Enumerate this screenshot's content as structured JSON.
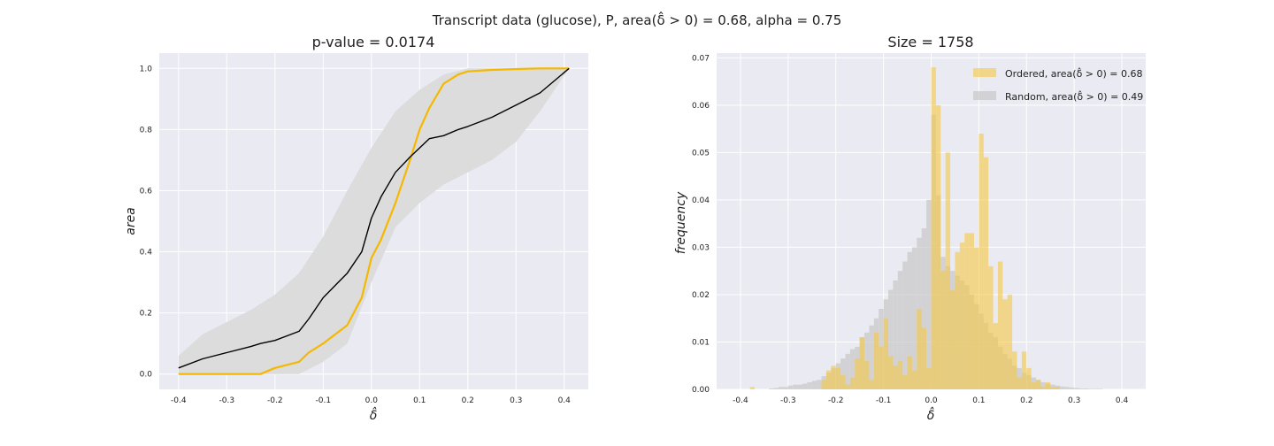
{
  "suptitle": "Transcript data (glucose), P, area(δ̂ > 0) = 0.68, alpha = 0.75",
  "chart_data": [
    {
      "type": "line",
      "title": "p-value = 0.0174",
      "xlabel": "δ̂",
      "ylabel": "area",
      "xlim": [
        -0.44,
        0.45
      ],
      "ylim": [
        -0.05,
        1.05
      ],
      "xticks": [
        "-0.4",
        "-0.3",
        "-0.2",
        "-0.1",
        "0.0",
        "0.1",
        "0.2",
        "0.3",
        "0.4"
      ],
      "yticks": [
        "0.0",
        "0.2",
        "0.4",
        "0.6",
        "0.8",
        "1.0"
      ],
      "grid": true,
      "colors": {
        "ordered": "#f5b800",
        "mean": "#000000",
        "band": "#dcdcdc",
        "background": "#eaeaf2"
      },
      "x": [
        -0.4,
        -0.35,
        -0.3,
        -0.25,
        -0.23,
        -0.2,
        -0.15,
        -0.13,
        -0.1,
        -0.05,
        -0.02,
        0.0,
        0.02,
        0.05,
        0.08,
        0.1,
        0.12,
        0.15,
        0.18,
        0.2,
        0.25,
        0.3,
        0.35,
        0.41
      ],
      "series": [
        {
          "values": [
            0.0,
            0.0,
            0.0,
            0.0,
            0.0,
            0.02,
            0.04,
            0.07,
            0.1,
            0.16,
            0.25,
            0.38,
            0.44,
            0.56,
            0.7,
            0.8,
            0.87,
            0.95,
            0.98,
            0.99,
            0.995,
            0.998,
            1.0,
            1.0
          ]
        },
        {
          "values": [
            0.02,
            0.05,
            0.07,
            0.09,
            0.1,
            0.11,
            0.14,
            0.18,
            0.25,
            0.33,
            0.4,
            0.51,
            0.58,
            0.66,
            0.71,
            0.74,
            0.77,
            0.78,
            0.8,
            0.81,
            0.84,
            0.88,
            0.92,
            1.0
          ]
        }
      ],
      "band": {
        "x": [
          -0.4,
          -0.35,
          -0.3,
          -0.25,
          -0.2,
          -0.15,
          -0.1,
          -0.05,
          0.0,
          0.05,
          0.1,
          0.15,
          0.2,
          0.25,
          0.3,
          0.35,
          0.41
        ],
        "lower": [
          0.0,
          0.0,
          0.0,
          0.0,
          0.0,
          0.0,
          0.04,
          0.1,
          0.3,
          0.48,
          0.56,
          0.62,
          0.66,
          0.7,
          0.76,
          0.86,
          1.0
        ],
        "upper": [
          0.06,
          0.13,
          0.17,
          0.21,
          0.26,
          0.33,
          0.45,
          0.6,
          0.74,
          0.86,
          0.93,
          0.98,
          1.0,
          1.0,
          1.0,
          1.0,
          1.0
        ]
      }
    },
    {
      "type": "histogram",
      "title": "Size = 1758",
      "xlabel": "δ̂",
      "ylabel": "frequency",
      "xlim": [
        -0.45,
        0.45
      ],
      "ylim": [
        0,
        0.071
      ],
      "xticks": [
        "-0.4",
        "-0.3",
        "-0.2",
        "-0.1",
        "0.0",
        "0.1",
        "0.2",
        "0.3",
        "0.4"
      ],
      "yticks": [
        "0.00",
        "0.01",
        "0.02",
        "0.03",
        "0.04",
        "0.05",
        "0.06",
        "0.07"
      ],
      "grid": true,
      "legend": "top-right",
      "bin_width": 0.01,
      "bins_start": -0.4,
      "series": [
        {
          "name": "Ordered, area(δ̂ > 0) = 0.68",
          "color": "#f5c842",
          "values": [
            0.0,
            0.0,
            0.0005,
            0.0,
            0.0,
            0.0,
            0.0,
            0.0,
            0.0,
            0.0,
            0.0,
            0.0,
            0.0,
            0.0,
            0.0,
            0.0,
            0.0,
            0.002,
            0.004,
            0.005,
            0.0045,
            0.003,
            0.001,
            0.0025,
            0.0065,
            0.011,
            0.006,
            0.002,
            0.012,
            0.009,
            0.015,
            0.007,
            0.005,
            0.006,
            0.003,
            0.007,
            0.004,
            0.017,
            0.013,
            0.0045,
            0.068,
            0.06,
            0.025,
            0.05,
            0.021,
            0.029,
            0.031,
            0.033,
            0.033,
            0.03,
            0.054,
            0.049,
            0.026,
            0.014,
            0.027,
            0.019,
            0.02,
            0.008,
            0.0025,
            0.008,
            0.0045,
            0.0015,
            0.002,
            0.0005,
            0.0015,
            0.0005,
            0.0005,
            0.0,
            0.0,
            0.0,
            0.0,
            0.0,
            0.0,
            0.0,
            0.0,
            0.0,
            0.0,
            0.0,
            0.0,
            0.0
          ]
        },
        {
          "name": "Random, area(δ̂ > 0) = 0.49",
          "color": "#c8c8c8",
          "values": [
            0.0,
            0.0,
            0.0,
            0.0,
            0.0,
            0.0,
            0.0002,
            0.0003,
            0.0005,
            0.0005,
            0.0008,
            0.001,
            0.001,
            0.0012,
            0.0015,
            0.0018,
            0.002,
            0.0028,
            0.0035,
            0.0045,
            0.0055,
            0.0065,
            0.0075,
            0.0085,
            0.009,
            0.011,
            0.012,
            0.0135,
            0.015,
            0.017,
            0.019,
            0.021,
            0.023,
            0.025,
            0.027,
            0.029,
            0.03,
            0.032,
            0.034,
            0.04,
            0.058,
            0.041,
            0.028,
            0.026,
            0.025,
            0.024,
            0.023,
            0.022,
            0.02,
            0.018,
            0.016,
            0.014,
            0.012,
            0.011,
            0.009,
            0.0075,
            0.0065,
            0.005,
            0.0045,
            0.0035,
            0.003,
            0.0025,
            0.002,
            0.0015,
            0.0012,
            0.001,
            0.0008,
            0.0006,
            0.0005,
            0.0004,
            0.0003,
            0.0002,
            0.0002,
            0.0001,
            0.0001,
            0.0001,
            0.0,
            0.0,
            0.0,
            0.0
          ]
        }
      ]
    }
  ]
}
